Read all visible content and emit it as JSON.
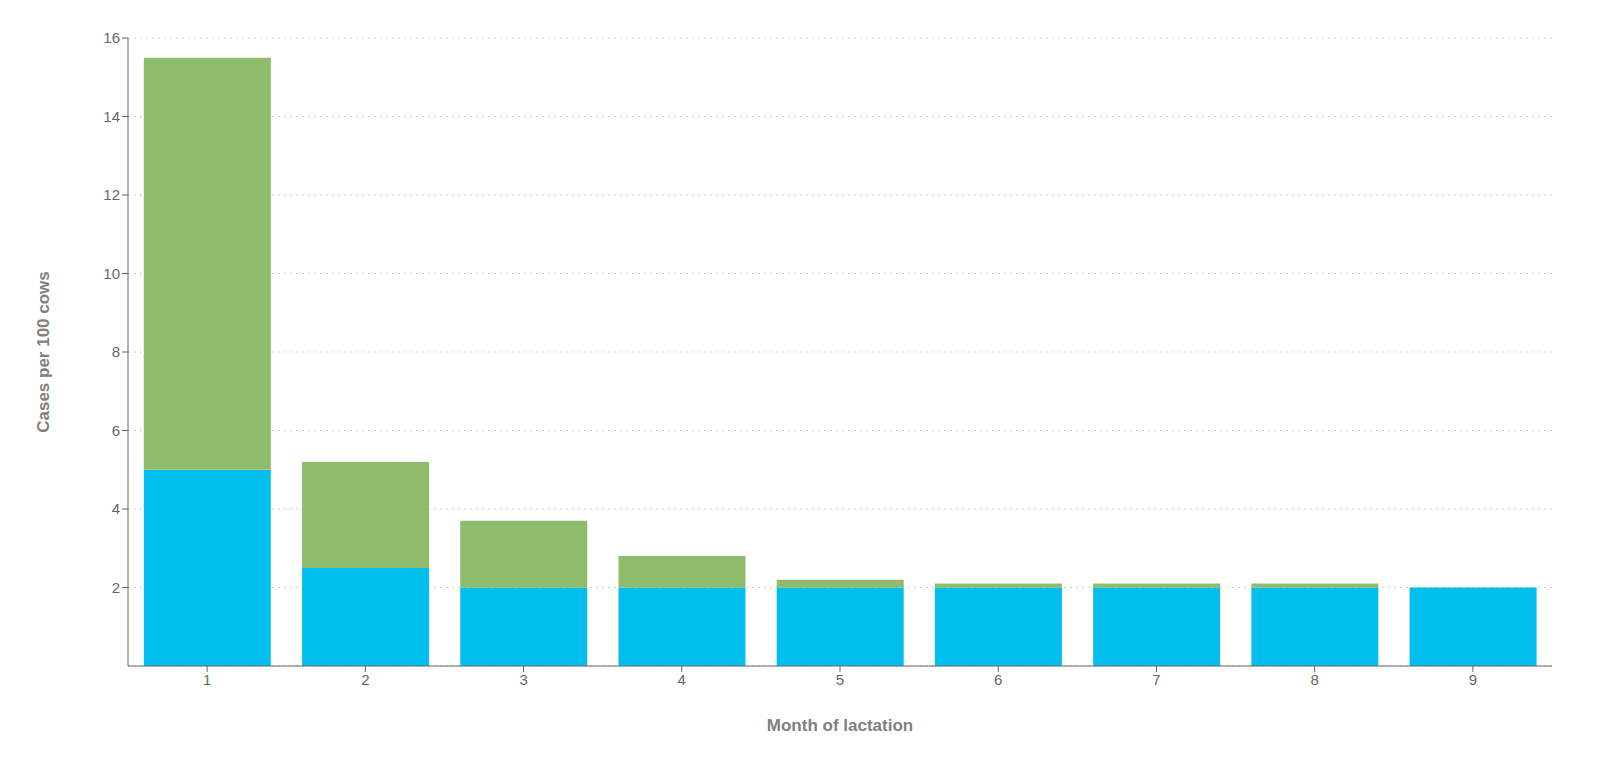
{
  "chart_data": {
    "type": "bar",
    "xlabel": "Month of lactation",
    "ylabel": "Cases per 100 cows",
    "categories": [
      "1",
      "2",
      "3",
      "4",
      "5",
      "6",
      "7",
      "8",
      "9"
    ],
    "series": [
      {
        "color": "#00BFEE",
        "values": [
          5.0,
          2.5,
          2.0,
          2.0,
          2.0,
          2.0,
          2.0,
          2.0,
          2.0
        ]
      },
      {
        "color": "#8FBC6A",
        "values": [
          10.5,
          2.7,
          1.7,
          0.8,
          0.2,
          0.1,
          0.1,
          0.1,
          0.0
        ]
      }
    ],
    "stacked": true,
    "ylim": [
      0,
      16
    ],
    "yticks": [
      2,
      4,
      6,
      8,
      10,
      12,
      14,
      16
    ],
    "grid": true
  }
}
